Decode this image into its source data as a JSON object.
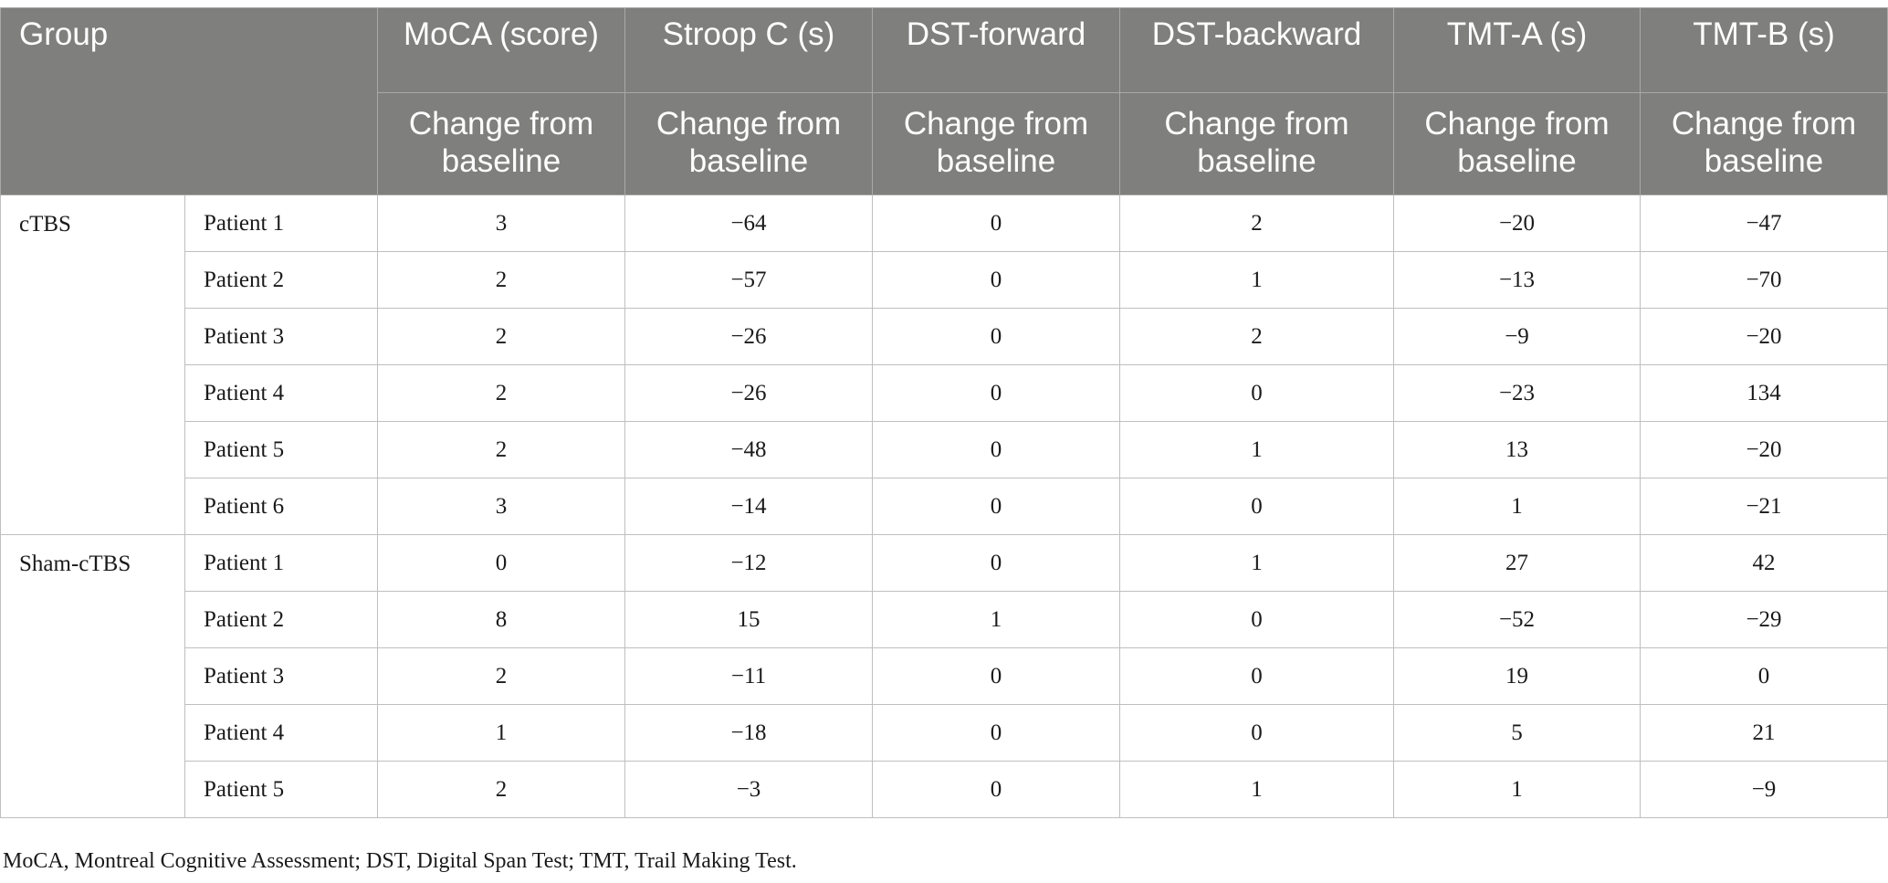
{
  "table": {
    "group_header": "Group",
    "measures": [
      "MoCA (score)",
      "Stroop C (s)",
      "DST-forward",
      "DST-backward",
      "TMT-A (s)",
      "TMT-B (s)"
    ],
    "subheader": "Change from baseline",
    "groups": [
      {
        "name": "cTBS",
        "rows": [
          {
            "label": "Patient 1",
            "values": [
              "3",
              "−64",
              "0",
              "2",
              "−20",
              "−47"
            ]
          },
          {
            "label": "Patient 2",
            "values": [
              "2",
              "−57",
              "0",
              "1",
              "−13",
              "−70"
            ]
          },
          {
            "label": "Patient 3",
            "values": [
              "2",
              "−26",
              "0",
              "2",
              "−9",
              "−20"
            ]
          },
          {
            "label": "Patient 4",
            "values": [
              "2",
              "−26",
              "0",
              "0",
              "−23",
              "134"
            ]
          },
          {
            "label": "Patient 5",
            "values": [
              "2",
              "−48",
              "0",
              "1",
              "13",
              "−20"
            ]
          },
          {
            "label": "Patient 6",
            "values": [
              "3",
              "−14",
              "0",
              "0",
              "1",
              "−21"
            ]
          }
        ]
      },
      {
        "name": "Sham-cTBS",
        "rows": [
          {
            "label": "Patient 1",
            "values": [
              "0",
              "−12",
              "0",
              "1",
              "27",
              "42"
            ]
          },
          {
            "label": "Patient 2",
            "values": [
              "8",
              "15",
              "1",
              "0",
              "−52",
              "−29"
            ]
          },
          {
            "label": "Patient 3",
            "values": [
              "2",
              "−11",
              "0",
              "0",
              "19",
              "0"
            ]
          },
          {
            "label": "Patient 4",
            "values": [
              "1",
              "−18",
              "0",
              "0",
              "5",
              "21"
            ]
          },
          {
            "label": "Patient 5",
            "values": [
              "2",
              "−3",
              "0",
              "1",
              "1",
              "−9"
            ]
          }
        ]
      }
    ]
  },
  "footnote": "MoCA, Montreal Cognitive Assessment; DST, Digital Span Test; TMT, Trail Making Test."
}
